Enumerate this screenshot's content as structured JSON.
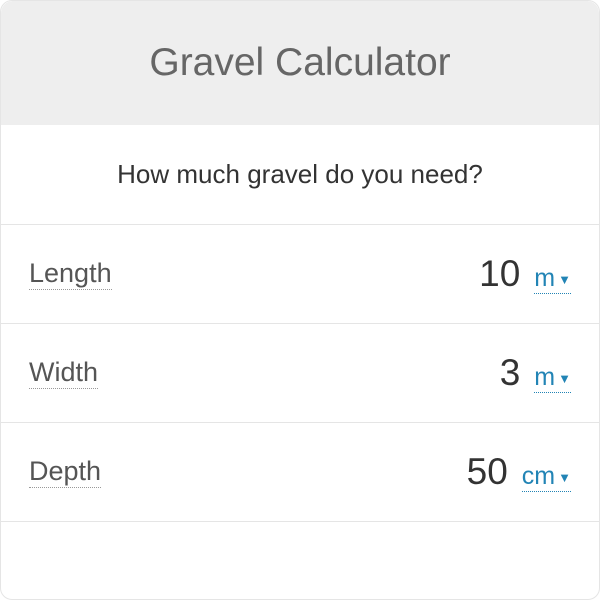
{
  "header": {
    "title": "Gravel Calculator"
  },
  "subheader": {
    "text": "How much gravel do you need?"
  },
  "fields": [
    {
      "label": "Length",
      "value": "10",
      "unit": "m"
    },
    {
      "label": "Width",
      "value": "3",
      "unit": "m"
    },
    {
      "label": "Depth",
      "value": "50",
      "unit": "cm"
    }
  ],
  "colors": {
    "header_bg": "#eeeeee",
    "header_text": "#666666",
    "body_text": "#333333",
    "label_text": "#555555",
    "link_color": "#2284b5",
    "border_color": "#e5e5e5"
  }
}
